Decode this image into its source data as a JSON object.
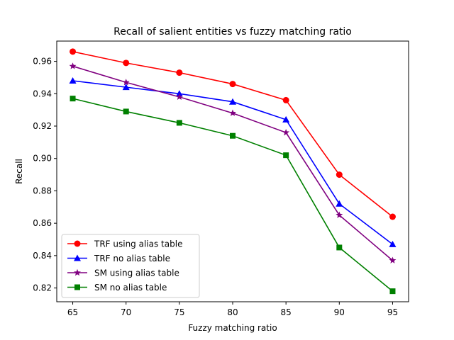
{
  "chart_data": {
    "type": "line",
    "title": "Recall of salient entities vs fuzzy matching ratio",
    "xlabel": "Fuzzy matching ratio",
    "ylabel": "Recall",
    "x": [
      65,
      70,
      75,
      80,
      85,
      90,
      95
    ],
    "xlim": [
      63.5,
      96.5
    ],
    "ylim": [
      0.8115,
      0.9725
    ],
    "xticks": [
      "65",
      "70",
      "75",
      "80",
      "85",
      "90",
      "95"
    ],
    "yticks": [
      "0.82",
      "0.84",
      "0.86",
      "0.88",
      "0.90",
      "0.92",
      "0.94",
      "0.96"
    ],
    "grid": false,
    "legend_position": "lower-left",
    "series": [
      {
        "name": "TRF using alias table",
        "color": "#ff0000",
        "marker": "circle",
        "values": [
          0.966,
          0.959,
          0.953,
          0.946,
          0.936,
          0.89,
          0.864
        ]
      },
      {
        "name": "TRF no alias table",
        "color": "#0000ff",
        "marker": "triangle",
        "values": [
          0.948,
          0.944,
          0.94,
          0.935,
          0.924,
          0.872,
          0.847
        ]
      },
      {
        "name": "SM using alias table",
        "color": "#800080",
        "marker": "star",
        "values": [
          0.957,
          0.947,
          0.938,
          0.928,
          0.916,
          0.865,
          0.837
        ]
      },
      {
        "name": "SM no alias table",
        "color": "#008000",
        "marker": "square",
        "values": [
          0.937,
          0.929,
          0.922,
          0.914,
          0.902,
          0.845,
          0.818
        ]
      }
    ]
  }
}
